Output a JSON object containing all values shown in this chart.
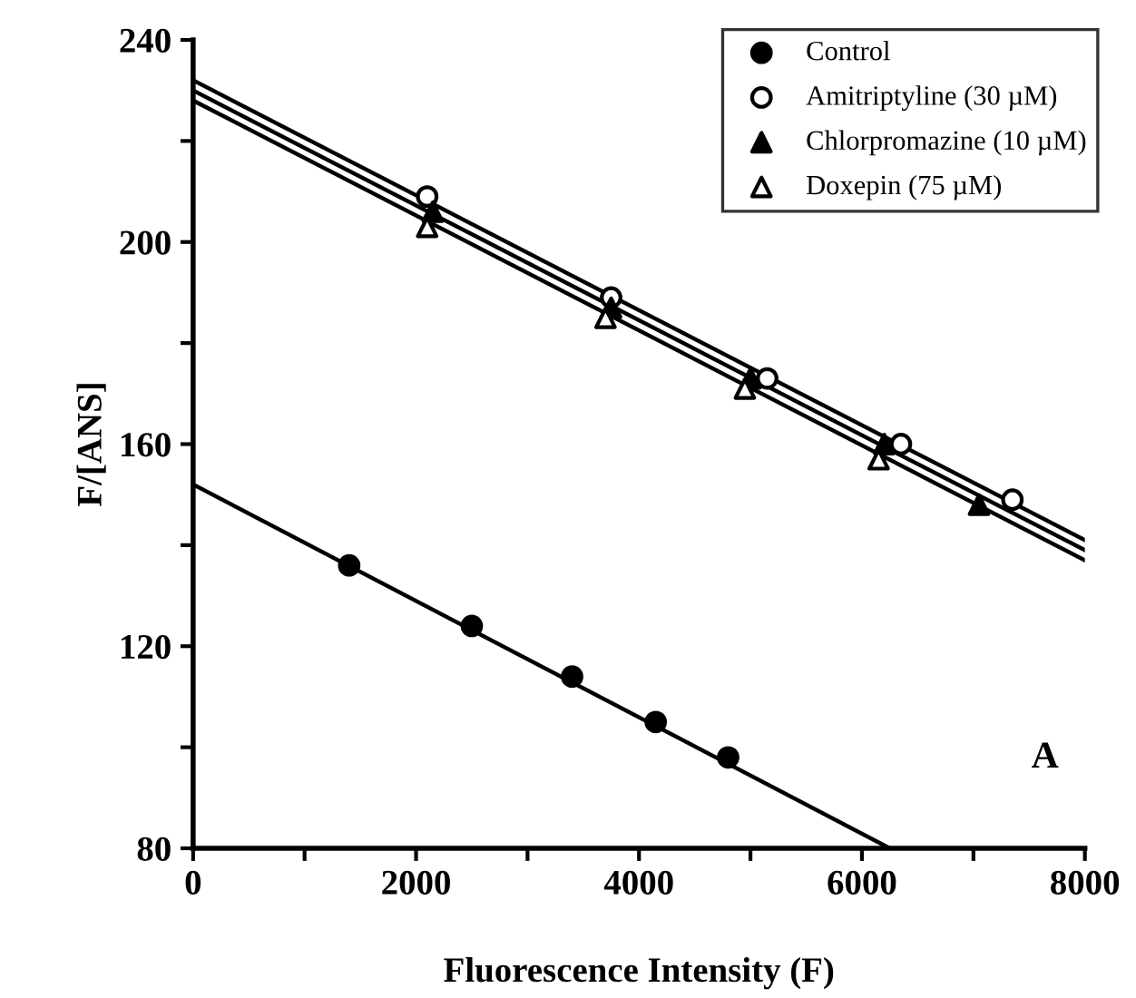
{
  "chart_data": {
    "type": "scatter",
    "xlabel": "Fluorescence Intensity (F)",
    "ylabel": "F/[ANS]",
    "xlim": [
      0,
      8000
    ],
    "ylim": [
      80,
      240
    ],
    "xticks": [
      0,
      {
        "value": 1000,
        "label": null
      },
      2000,
      {
        "value": 3000,
        "label": null
      },
      4000,
      {
        "value": 5000,
        "label": null
      },
      6000,
      {
        "value": 7000,
        "label": null
      },
      8000
    ],
    "yticks": [
      80,
      {
        "value": 100,
        "label": null
      },
      120,
      {
        "value": 140,
        "label": null
      },
      160,
      {
        "value": 180,
        "label": null
      },
      200,
      {
        "value": 220,
        "label": null
      },
      240
    ],
    "grid": false,
    "legend": "top right",
    "annotations": [
      "A"
    ],
    "series": [
      {
        "name": "Control",
        "color": "#000000",
        "marker": "circle",
        "x": [
          1400,
          2500,
          3400,
          4150,
          4800
        ],
        "values": [
          136,
          124,
          114,
          105,
          98
        ]
      },
      {
        "name": "Amitriptyline (30 µM)",
        "color": "#ffffff",
        "marker": "circle",
        "x": [
          2100,
          3750,
          5150,
          6350,
          7350
        ],
        "values": [
          209,
          189,
          173,
          160,
          149
        ]
      },
      {
        "name": "Chlorpromazine (10 µM)",
        "color": "#000000",
        "marker": "triangle",
        "x": [
          2150,
          3750,
          5000,
          6200,
          7050
        ],
        "values": [
          206,
          187,
          173,
          160,
          148
        ]
      },
      {
        "name": "Doxepin (75 µM)",
        "color": "#ffffff",
        "marker": "triangle",
        "x": [
          2100,
          3700,
          4950,
          6150
        ],
        "values": [
          203,
          185,
          171,
          157
        ]
      },
      {
        "type": "line",
        "color": "#000000",
        "x": [
          0,
          6250
        ],
        "values": [
          152,
          80
        ]
      },
      {
        "type": "line",
        "color": "#000000",
        "x": [
          0,
          8000
        ],
        "values": [
          232,
          141
        ]
      },
      {
        "type": "line",
        "color": "#000000",
        "x": [
          0,
          8000
        ],
        "values": [
          230,
          139
        ]
      },
      {
        "type": "line",
        "color": "#000000",
        "x": [
          0,
          8000
        ],
        "values": [
          228,
          137
        ]
      }
    ]
  }
}
